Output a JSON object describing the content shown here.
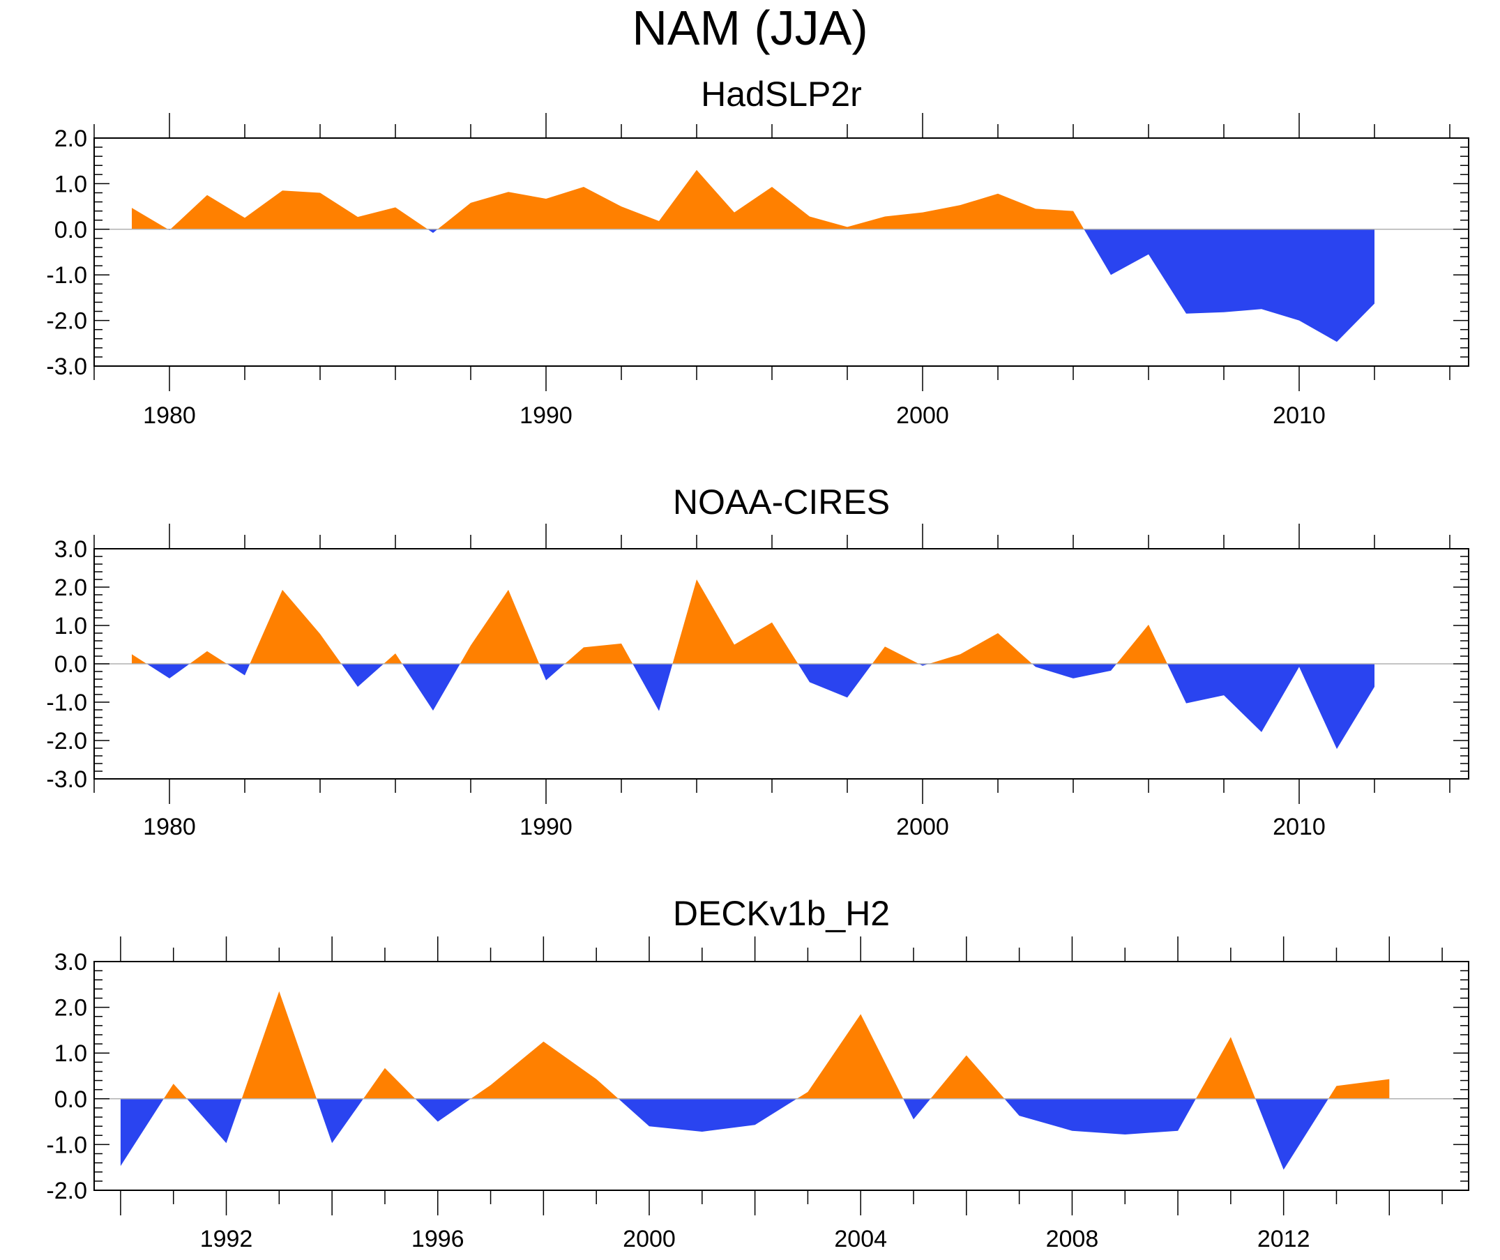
{
  "title": "NAM (JJA)",
  "colors": {
    "positive": "#ff8000",
    "negative": "#2a44f0",
    "axis": "#000000",
    "zero_line": "#b0b0b0"
  },
  "chart_data": [
    {
      "type": "area",
      "title": "HadSLP2r",
      "xlim": [
        1978,
        2014.5
      ],
      "ylim": [
        -3.0,
        2.0
      ],
      "ytick_labels": [
        "2.0",
        "1.0",
        "0.0",
        "-1.0",
        "-2.0",
        "-3.0"
      ],
      "ytick_values": [
        2,
        1,
        0,
        -1,
        -2,
        -3
      ],
      "xtick_labels": [
        "1980",
        "1990",
        "2000",
        "2010"
      ],
      "xtick_values": [
        1980,
        1990,
        2000,
        2010
      ],
      "x": [
        1979,
        1980,
        1981,
        1982,
        1983,
        1984,
        1985,
        1986,
        1987,
        1988,
        1989,
        1990,
        1991,
        1992,
        1993,
        1994,
        1995,
        1996,
        1997,
        1998,
        1999,
        2000,
        2001,
        2002,
        2003,
        2004,
        2005,
        2006,
        2007,
        2008,
        2009,
        2010,
        2011,
        2012
      ],
      "values": [
        0.47,
        -0.02,
        0.75,
        0.25,
        0.85,
        0.8,
        0.27,
        0.48,
        -0.08,
        0.58,
        0.82,
        0.67,
        0.93,
        0.5,
        0.18,
        1.3,
        0.37,
        0.93,
        0.28,
        0.05,
        0.28,
        0.37,
        0.53,
        0.78,
        0.45,
        0.4,
        -1.0,
        -0.55,
        -1.85,
        -1.82,
        -1.75,
        -2.0,
        -2.47,
        -1.63
      ]
    },
    {
      "type": "area",
      "title": "NOAA-CIRES",
      "xlim": [
        1978,
        2014.5
      ],
      "ylim": [
        -3.0,
        3.0
      ],
      "ytick_labels": [
        "3.0",
        "2.0",
        "1.0",
        "0.0",
        "-1.0",
        "-2.0",
        "-3.0"
      ],
      "ytick_values": [
        3,
        2,
        1,
        0,
        -1,
        -2,
        -3
      ],
      "xtick_labels": [
        "1980",
        "1990",
        "2000",
        "2010"
      ],
      "xtick_values": [
        1980,
        1990,
        2000,
        2010
      ],
      "x": [
        1979,
        1980,
        1981,
        1982,
        1983,
        1984,
        1985,
        1986,
        1987,
        1988,
        1989,
        1990,
        1991,
        1992,
        1993,
        1994,
        1995,
        1996,
        1997,
        1998,
        1999,
        2000,
        2001,
        2002,
        2003,
        2004,
        2005,
        2006,
        2007,
        2008,
        2009,
        2010,
        2011,
        2012
      ],
      "values": [
        0.25,
        -0.38,
        0.33,
        -0.3,
        1.93,
        0.78,
        -0.6,
        0.27,
        -1.22,
        0.48,
        1.93,
        -0.43,
        0.43,
        0.53,
        -1.23,
        2.2,
        0.5,
        1.08,
        -0.48,
        -0.88,
        0.45,
        -0.05,
        0.25,
        0.8,
        -0.08,
        -0.38,
        -0.18,
        1.02,
        -1.03,
        -0.82,
        -1.78,
        -0.08,
        -2.22,
        -0.6
      ]
    },
    {
      "type": "area",
      "title": "DECKv1b_H2",
      "xlim": [
        1989.5,
        2015.5
      ],
      "ylim": [
        -2.0,
        3.0
      ],
      "ytick_labels": [
        "3.0",
        "2.0",
        "1.0",
        "0.0",
        "-1.0",
        "-2.0"
      ],
      "ytick_values": [
        3,
        2,
        1,
        0,
        -1,
        -2
      ],
      "xtick_labels": [
        "1992",
        "1996",
        "2000",
        "2004",
        "2008",
        "2012"
      ],
      "xtick_values": [
        1992,
        1996,
        2000,
        2004,
        2008,
        2012
      ],
      "x": [
        1990,
        1991,
        1992,
        1993,
        1994,
        1995,
        1996,
        1997,
        1998,
        1999,
        2000,
        2001,
        2002,
        2003,
        2004,
        2005,
        2006,
        2007,
        2008,
        2009,
        2010,
        2011,
        2012,
        2013,
        2014
      ],
      "values": [
        -1.47,
        0.33,
        -0.97,
        2.35,
        -0.97,
        0.67,
        -0.5,
        0.3,
        1.25,
        0.43,
        -0.6,
        -0.72,
        -0.57,
        0.15,
        1.85,
        -0.45,
        0.95,
        -0.37,
        -0.7,
        -0.78,
        -0.7,
        1.35,
        -1.55,
        0.28,
        0.43
      ]
    }
  ]
}
